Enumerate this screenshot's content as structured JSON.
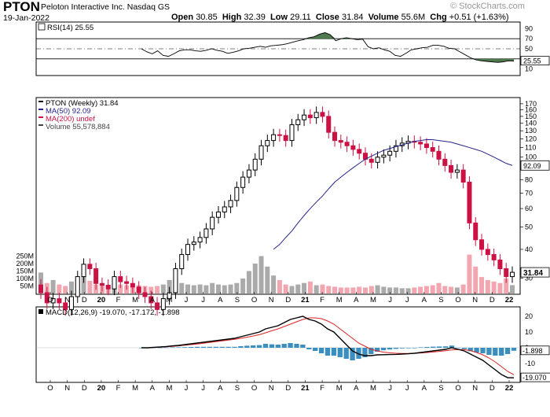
{
  "header": {
    "symbol": "PTON",
    "company": "Peloton Interactive Inc.",
    "exchange": "Nasdaq GS",
    "date": "19-Jan-2022",
    "open_label": "Open",
    "open": "30.85",
    "high_label": "High",
    "high": "32.39",
    "low_label": "Low",
    "low": "29.11",
    "close_label": "Close",
    "close": "31.84",
    "volume_label": "Volume",
    "volume": "55.6M",
    "chg_label": "Chg",
    "chg": "+0.51 (+1.63%)",
    "logo": "© StockCharts.com"
  },
  "colors": {
    "up": "#000000",
    "down": "#cc1144",
    "ma50": "#24248a",
    "rsi_fill": "#4f7a4f",
    "vol_up": "#aaaaaa",
    "vol_down": "#f2a6b0",
    "macd_line": "#000000",
    "signal_line": "#dd2222",
    "hist": "#3a8fc0"
  },
  "chart_data": [
    {
      "type": "line",
      "panel": "rsi",
      "legend": "RSI(14) 25.55",
      "ylim": [
        0,
        100
      ],
      "y_ticks": [
        90,
        70,
        50,
        30,
        10
      ],
      "ref_lines": [
        70,
        50,
        30
      ],
      "last_label": "25.55",
      "values": [
        50,
        44,
        40,
        46,
        37,
        35,
        40,
        46,
        48,
        48,
        46,
        45,
        47,
        50,
        47,
        45,
        41,
        43,
        46,
        50,
        51,
        53,
        55,
        53,
        56,
        57,
        58,
        60,
        63,
        66,
        68,
        72,
        74,
        79,
        82,
        78,
        66,
        70,
        72,
        70,
        68,
        69,
        54,
        50,
        52,
        48,
        45,
        37,
        35,
        41,
        48,
        50,
        52,
        53,
        57,
        57,
        55,
        51,
        50,
        44,
        38,
        32,
        28,
        26,
        25,
        24,
        23,
        24,
        26,
        25.55
      ]
    },
    {
      "type": "candlestick",
      "panel": "price",
      "legend": [
        "PTON (Weekly) 31.84",
        "MA(50) 92.09",
        "MA(200) undef",
        "Volume 55,578,884"
      ],
      "y_scale": "log",
      "ylim": [
        26,
        178
      ],
      "y_ticks": [
        170,
        160,
        150,
        140,
        130,
        120,
        110,
        100,
        90,
        80,
        70,
        60,
        50,
        40,
        30
      ],
      "last_close_label": "31.84",
      "ma50_label": "92.09",
      "x_ticks": [
        "O",
        "N",
        "D",
        "20",
        "F",
        "M",
        "A",
        "M",
        "J",
        "J",
        "A",
        "S",
        "O",
        "N",
        "D",
        "21",
        "F",
        "M",
        "A",
        "M",
        "J",
        "J",
        "A",
        "S",
        "O",
        "N",
        "D",
        "22"
      ],
      "closes": [
        26.0,
        23.5,
        24.5,
        23.5,
        22.0,
        25.0,
        30.5,
        34.5,
        33.0,
        28.5,
        28.0,
        27.0,
        30.5,
        29.0,
        28.5,
        27.5,
        26.0,
        25.0,
        23.5,
        22.0,
        24.5,
        26.0,
        33.0,
        38.0,
        42.0,
        43.0,
        45.0,
        49.0,
        55.0,
        58.0,
        61.0,
        65.0,
        74.0,
        82.0,
        88.0,
        98.0,
        112.0,
        118.0,
        125.0,
        124.0,
        118.0,
        138.0,
        145.0,
        152.0,
        148.0,
        156.0,
        150.0,
        128.0,
        118.0,
        116.0,
        112.0,
        108.0,
        104.0,
        98.0,
        95.0,
        100.0,
        102.0,
        106.0,
        112.0,
        115.0,
        117.0,
        116.0,
        114.0,
        110.0,
        106.0,
        98.0,
        92.0,
        86.0,
        88.0,
        78.0,
        52.0,
        44.0,
        40.0,
        38.0,
        36.0,
        33.0,
        30.5,
        31.84
      ],
      "volume_M": [
        140,
        70,
        90,
        60,
        50,
        80,
        95,
        120,
        85,
        60,
        65,
        55,
        50,
        60,
        55,
        50,
        55,
        50,
        45,
        50,
        60,
        90,
        100,
        70,
        60,
        55,
        60,
        55,
        70,
        60,
        55,
        60,
        70,
        100,
        150,
        200,
        250,
        180,
        120,
        90,
        60,
        50,
        60,
        70,
        80,
        55,
        60,
        50,
        45,
        40,
        40,
        40,
        45,
        40,
        50,
        55,
        45,
        40,
        40,
        35,
        35,
        40,
        45,
        50,
        55,
        70,
        50,
        45,
        40,
        60,
        260,
        180,
        110,
        90,
        80,
        70,
        100,
        55.6
      ],
      "ma50": [
        null,
        null,
        null,
        null,
        null,
        null,
        null,
        null,
        null,
        null,
        null,
        null,
        null,
        null,
        null,
        null,
        null,
        null,
        null,
        null,
        null,
        null,
        null,
        null,
        null,
        null,
        null,
        null,
        null,
        null,
        null,
        null,
        null,
        null,
        null,
        null,
        null,
        null,
        40,
        42,
        45,
        48,
        52,
        56,
        60,
        64,
        68,
        73,
        78,
        82,
        86,
        90,
        94,
        98,
        101,
        104,
        107,
        109,
        111,
        113,
        115,
        117,
        118,
        119,
        119,
        118,
        117,
        116,
        114,
        112,
        110,
        108,
        106,
        103,
        100,
        97,
        94,
        92.09
      ]
    },
    {
      "type": "bar",
      "panel": "macd",
      "legend": "MACD(12,26,9) -19.070, -17.172, -1.898",
      "y_ticks": [
        20,
        10,
        0,
        -10
      ],
      "ylim": [
        -21,
        25
      ],
      "labels": [
        "-1.898",
        "-19.070"
      ],
      "macd": [
        0,
        0,
        0.3,
        0.5,
        0.8,
        1.2,
        1.5,
        2,
        2.5,
        3,
        3.5,
        4,
        4.5,
        5,
        5.5,
        6,
        7,
        8,
        9,
        10,
        12,
        13,
        14,
        16,
        18,
        19,
        20,
        18,
        17,
        15,
        12,
        10,
        6,
        2,
        -2,
        -4,
        -5,
        -5,
        -4.5,
        -4.4,
        -4.3,
        -4.2,
        -4,
        -3.8,
        -3.5,
        -3,
        -2.5,
        -2,
        -1.5,
        -1,
        0,
        -1,
        -2,
        -4,
        -6,
        -8,
        -11,
        -14,
        -17,
        -19,
        -19.07
      ],
      "signal": [
        0,
        0,
        0.2,
        0.4,
        0.6,
        0.9,
        1.2,
        1.6,
        2,
        2.4,
        2.9,
        3.4,
        3.9,
        4.4,
        4.9,
        5.4,
        6,
        6.7,
        7.5,
        8.3,
        9.5,
        10.8,
        12,
        13.5,
        15,
        16.5,
        18,
        19,
        19,
        18.5,
        17,
        15,
        12,
        9,
        6,
        3,
        1,
        -1,
        -2,
        -2.8,
        -3.2,
        -3.5,
        -3.6,
        -3.6,
        -3.5,
        -3.3,
        -3,
        -2.7,
        -2.3,
        -1.9,
        -1.4,
        -1.1,
        -1.2,
        -1.8,
        -3,
        -4.5,
        -6.5,
        -9,
        -12,
        -15,
        -17.172
      ],
      "histogram": [
        0,
        0,
        0.1,
        0.1,
        0.2,
        0.3,
        0.3,
        0.4,
        0.5,
        0.6,
        0.6,
        0.6,
        0.6,
        0.6,
        0.6,
        0.6,
        1,
        1.3,
        1.5,
        1.7,
        2.5,
        2.2,
        2,
        2.5,
        3,
        2.5,
        2,
        -1,
        -2,
        -3.5,
        -5,
        -5,
        -6,
        -7,
        -8,
        -7,
        -6,
        -4,
        -2.5,
        -1.6,
        -1.1,
        -0.7,
        -0.4,
        -0.2,
        0,
        0.3,
        0.5,
        0.7,
        0.8,
        0.9,
        1.4,
        0.1,
        -0.8,
        -2.2,
        -3,
        -3.5,
        -4.5,
        -5,
        -5,
        -4,
        -1.898
      ]
    }
  ]
}
